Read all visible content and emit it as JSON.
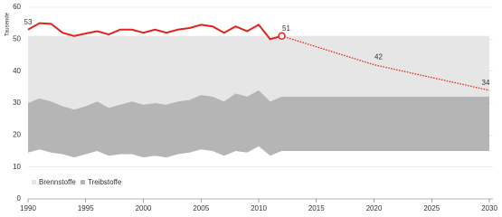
{
  "chart_data": {
    "type": "area",
    "ylabel": "Tausende",
    "x": [
      1990,
      1991,
      1992,
      1993,
      1994,
      1995,
      1996,
      1997,
      1998,
      1999,
      2000,
      2001,
      2002,
      2003,
      2004,
      2005,
      2006,
      2007,
      2008,
      2009,
      2010,
      2011,
      2012,
      2030
    ],
    "series": [
      {
        "name": "Brennstoffe",
        "color": "#e6e6e6",
        "values": [
          51,
          51,
          51,
          51,
          51,
          51,
          51,
          51,
          51,
          51,
          51,
          51,
          51,
          51,
          51,
          51,
          51,
          51,
          51,
          51,
          51,
          51,
          51,
          51
        ]
      },
      {
        "name": "Treibstoffe",
        "color": "#b5b5b5",
        "low": [
          14.5,
          15.5,
          14.5,
          14,
          13,
          14,
          15,
          13.5,
          14,
          14,
          13,
          13.5,
          13,
          14,
          14.5,
          15.5,
          15,
          13.5,
          15,
          14.5,
          16.5,
          13.5,
          15,
          15
        ],
        "values": [
          30,
          31.5,
          30.5,
          29,
          28,
          29,
          30.5,
          28.5,
          29.5,
          30.5,
          29.5,
          30,
          29.5,
          30.5,
          31,
          32.5,
          32,
          30.5,
          33,
          32,
          34,
          30.5,
          32,
          32
        ]
      }
    ],
    "line": {
      "color": "#e2231a",
      "x": [
        1990,
        1991,
        1992,
        1993,
        1994,
        1995,
        1996,
        1997,
        1998,
        1999,
        2000,
        2001,
        2002,
        2003,
        2004,
        2005,
        2006,
        2007,
        2008,
        2009,
        2010,
        2011,
        2012
      ],
      "values": [
        53,
        55,
        54.8,
        52,
        51,
        51.8,
        52.5,
        51.5,
        53,
        53,
        52,
        53,
        52,
        53,
        53.5,
        54.5,
        54,
        52,
        54,
        52.5,
        54.5,
        50,
        51
      ]
    },
    "projection": {
      "x": [
        2012,
        2020,
        2030
      ],
      "values": [
        51,
        42,
        34
      ]
    },
    "xlim": [
      1990,
      2030
    ],
    "xticks": [
      1990,
      1995,
      2000,
      2005,
      2010,
      2015,
      2020,
      2025,
      2030
    ],
    "ylim": [
      0,
      60
    ],
    "yticks": [
      0,
      10,
      20,
      30,
      40,
      50,
      60
    ],
    "grid": true
  }
}
